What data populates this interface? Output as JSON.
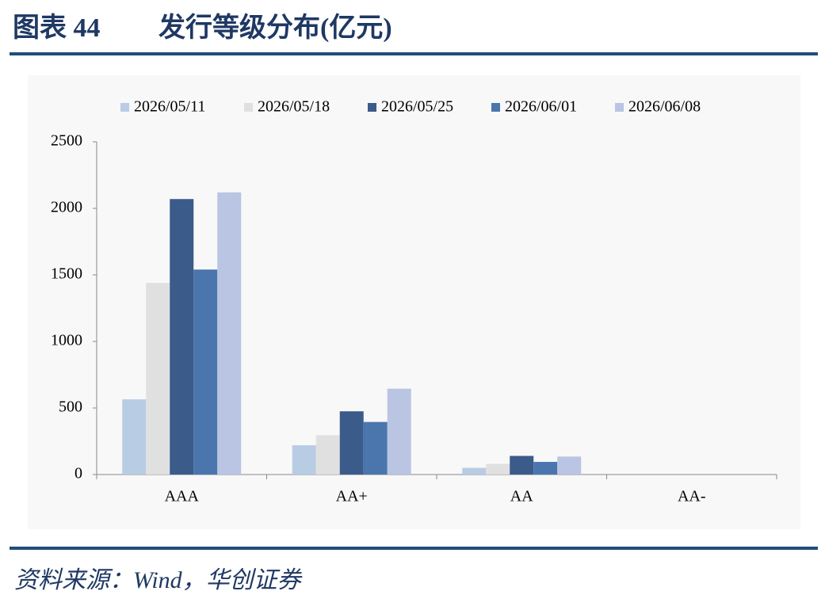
{
  "chart_data": {
    "type": "bar",
    "figure_label": "图表 44",
    "title": "发行等级分布(亿元)",
    "source": "资料来源：Wind，华创证券",
    "categories": [
      "AAA",
      "AA+",
      "AA",
      "AA-"
    ],
    "series": [
      {
        "name": "2026/05/11",
        "color": "#b8cce4",
        "values": [
          565,
          220,
          50,
          0
        ]
      },
      {
        "name": "2026/05/18",
        "color": "#e0e0e0",
        "values": [
          1440,
          295,
          80,
          0
        ]
      },
      {
        "name": "2026/05/25",
        "color": "#3b5b8b",
        "values": [
          2070,
          475,
          140,
          0
        ]
      },
      {
        "name": "2026/06/01",
        "color": "#4a76ad",
        "values": [
          1540,
          395,
          95,
          0
        ]
      },
      {
        "name": "2026/06/08",
        "color": "#b9c5e2",
        "values": [
          2120,
          645,
          135,
          0
        ]
      }
    ],
    "ylim": [
      0,
      2500
    ],
    "yticks": [
      0,
      500,
      1000,
      1500,
      2000,
      2500
    ],
    "legend": "top",
    "grid": false
  }
}
